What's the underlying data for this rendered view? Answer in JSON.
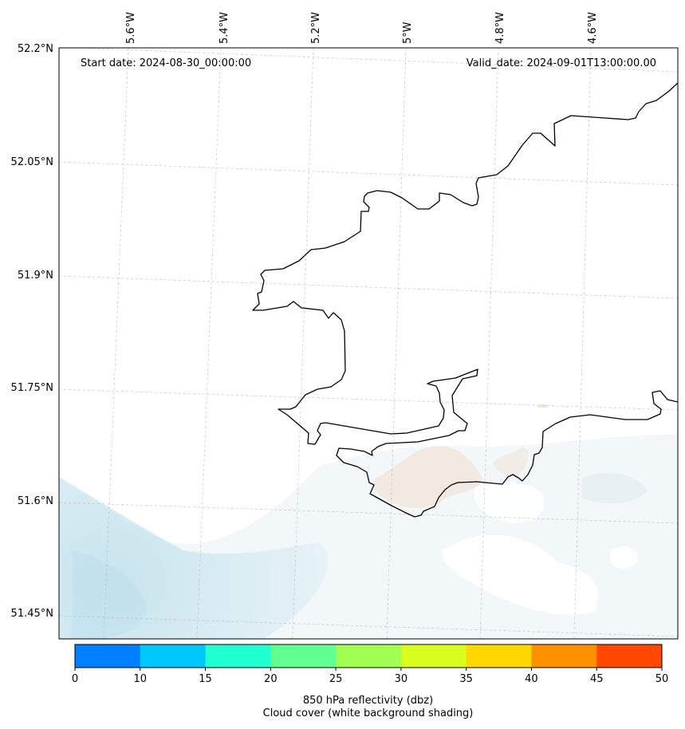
{
  "map": {
    "start_date_text": "Start date: 2024-08-30_00:00:00",
    "valid_date_text": "Valid_date: 2024-09-01T13:00:00.00",
    "lon_ticks": [
      "5.6°W",
      "5.4°W",
      "5.2°W",
      "5°W",
      "4.8°W",
      "4.6°W"
    ],
    "lat_ticks": [
      "52.2°N",
      "52.05°N",
      "51.9°N",
      "51.75°N",
      "51.6°N",
      "51.45°N"
    ],
    "gridlines": true,
    "coastline_color": "#000000",
    "cloud_color": "#add8e6",
    "reflectivity_color": "#f4a460"
  },
  "colorbar": {
    "ticks": [
      "0",
      "10",
      "15",
      "20",
      "25",
      "30",
      "35",
      "40",
      "45",
      "50"
    ],
    "colors": [
      "#0080ff",
      "#00c8ff",
      "#20ffd0",
      "#60ff90",
      "#a0ff50",
      "#d8ff20",
      "#ffd800",
      "#ff9000",
      "#ff4800"
    ],
    "label_line1": "850 hPa reflectivity (dbz)",
    "label_line2": "Cloud cover (white background shading)"
  }
}
